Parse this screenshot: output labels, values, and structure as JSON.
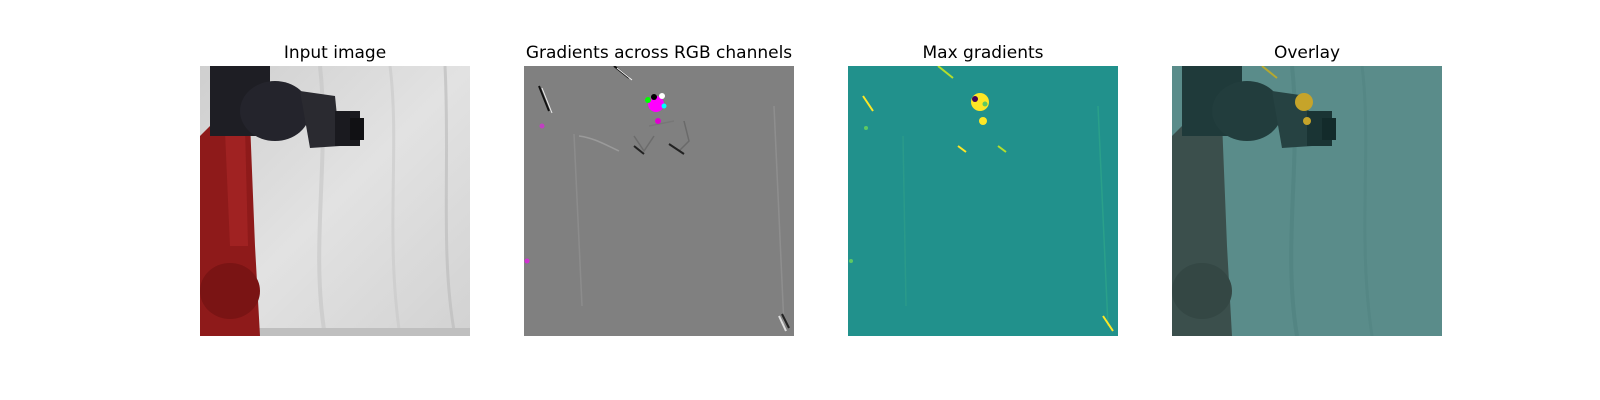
{
  "figure": {
    "panels": [
      {
        "title": "Input image"
      },
      {
        "title": "Gradients across RGB channels"
      },
      {
        "title": "Max gradients"
      },
      {
        "title": "Overlay"
      }
    ]
  },
  "colors": {
    "background": "#ffffff",
    "cloth": "#dcdcdc",
    "robot_red": "#8e1a1a",
    "robot_dark": "#1e1e24",
    "gradient_gray": "#808080",
    "viridis_mid": "#21918c",
    "viridis_high": "#fde725",
    "overlay_tint": "#2a7f7a"
  }
}
